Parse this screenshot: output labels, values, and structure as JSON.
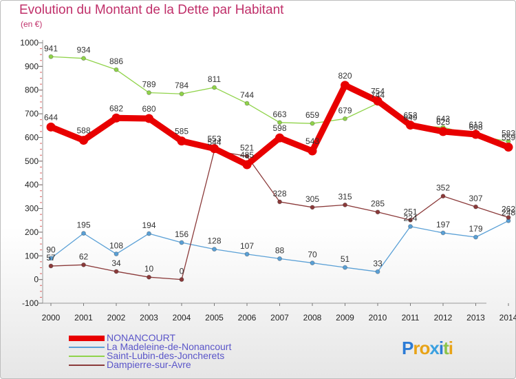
{
  "title": "Evolution du Montant de la Dette par Habitant",
  "unit": "(en €)",
  "logo": {
    "text": "Proxiti",
    "letters": [
      "P",
      "r",
      "o",
      "x",
      "i",
      "t",
      "i"
    ],
    "colors": [
      "#2b7bd6",
      "#e8a317",
      "#e8a317",
      "#3aa0e0",
      "#2b7bd6",
      "#8bc34a",
      "#e8a317"
    ]
  },
  "chart_data": {
    "type": "line",
    "title": "Evolution du Montant de la Dette par Habitant",
    "ylabel": "(en €)",
    "x": [
      "2000",
      "2001",
      "2002",
      "2003",
      "2004",
      "2005",
      "2006",
      "2007",
      "2008",
      "2009",
      "2010",
      "2011",
      "2012",
      "2013",
      "2014"
    ],
    "ylim": [
      -100,
      1000
    ],
    "yticks": [
      "-100",
      "0",
      "100",
      "200",
      "300",
      "400",
      "500",
      "600",
      "700",
      "800",
      "900",
      "1000"
    ],
    "grid": false,
    "legend": "bottom-left",
    "series": [
      {
        "name": "NONANCOURT",
        "color": "#e80000",
        "values": [
          644,
          588,
          682,
          680,
          585,
          553,
          485,
          598,
          543,
          820,
          754,
          652,
          625,
          613,
          559
        ],
        "labels": [
          "644",
          "588",
          "682",
          "680",
          "585",
          "553",
          "485",
          "598",
          "543",
          "820",
          "754",
          "652",
          "625",
          "613",
          "559"
        ]
      },
      {
        "name": "La Madeleine-de-Nonancourt",
        "color": "#5aa0d6",
        "values": [
          90,
          195,
          108,
          194,
          156,
          128,
          107,
          88,
          70,
          51,
          33,
          224,
          197,
          179,
          248
        ],
        "labels": [
          "90",
          "195",
          "108",
          "194",
          "156",
          "128",
          "107",
          "88",
          "70",
          "51",
          "33",
          "224",
          "197",
          "179",
          "248"
        ]
      },
      {
        "name": "Saint-Lubin-des-Joncherets",
        "color": "#90d34a",
        "values": [
          941,
          934,
          886,
          789,
          784,
          811,
          744,
          663,
          659,
          679,
          744,
          649,
          643,
          608,
          583
        ],
        "labels": [
          "941",
          "934",
          "886",
          "789",
          "784",
          "811",
          "744",
          "663",
          "659",
          "679",
          "744",
          "649",
          "643",
          "608",
          "583"
        ]
      },
      {
        "name": "Dampierre-sur-Avre",
        "color": "#8b3a3a",
        "values": [
          57,
          62,
          34,
          10,
          0,
          544,
          521,
          328,
          305,
          315,
          285,
          251,
          352,
          307,
          262
        ],
        "labels": [
          "57",
          "62",
          "34",
          "10",
          "0",
          "544",
          "521",
          "328",
          "305",
          "315",
          "285",
          "251",
          "352",
          "307",
          "262"
        ]
      }
    ]
  }
}
